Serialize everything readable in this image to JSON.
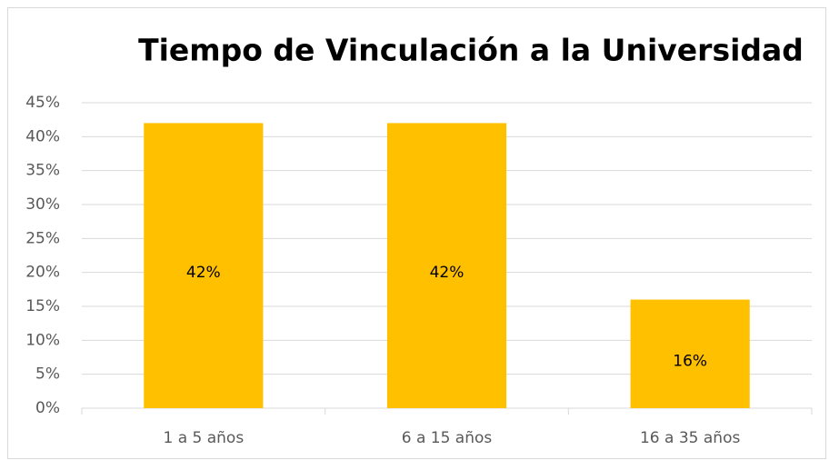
{
  "chart_data": {
    "type": "bar",
    "title": "Tiempo de Vinculación a la Universidad",
    "categories": [
      "1 a 5 años",
      "6 a 15 años",
      "16 a 35 años"
    ],
    "values": [
      42,
      42,
      16
    ],
    "value_labels": [
      "42%",
      "42%",
      "16%"
    ],
    "color": "#ffc000",
    "ylim": [
      0,
      45
    ],
    "yticks": [
      {
        "value": 0,
        "label": "0%"
      },
      {
        "value": 5,
        "label": "5%"
      },
      {
        "value": 10,
        "label": "10%"
      },
      {
        "value": 15,
        "label": "15%"
      },
      {
        "value": 20,
        "label": "20%"
      },
      {
        "value": 25,
        "label": "25%"
      },
      {
        "value": 30,
        "label": "30%"
      },
      {
        "value": 35,
        "label": "35%"
      },
      {
        "value": 40,
        "label": "40%"
      },
      {
        "value": 45,
        "label": "45%"
      }
    ],
    "grid": true
  }
}
